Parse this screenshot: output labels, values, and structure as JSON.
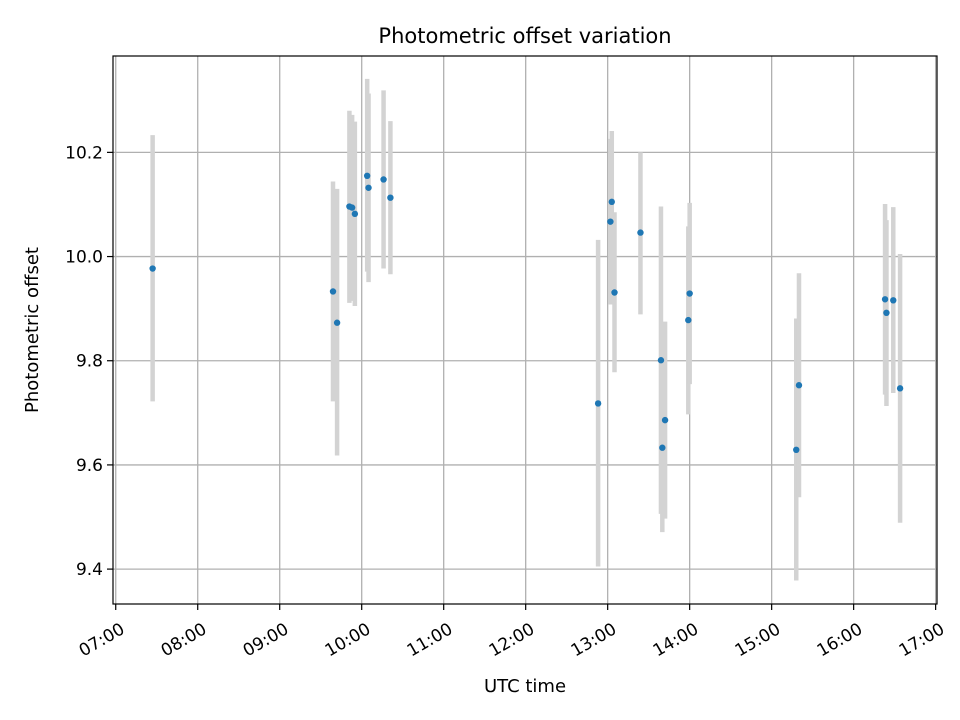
{
  "chart_data": {
    "type": "scatter",
    "title": "Photometric offset variation",
    "xlabel": "UTC time",
    "ylabel": "Photometric offset",
    "xlim": [
      "06:58",
      "17:01"
    ],
    "ylim": [
      9.333,
      10.385
    ],
    "x_ticks": [
      "07:00",
      "08:00",
      "09:00",
      "10:00",
      "11:00",
      "12:00",
      "13:00",
      "14:00",
      "15:00",
      "16:00",
      "17:00"
    ],
    "y_ticks": [
      9.4,
      9.6,
      9.8,
      10.0,
      10.2
    ],
    "y_tick_labels": [
      "9.4",
      "9.6",
      "9.8",
      "10.0",
      "10.2"
    ],
    "grid": true,
    "marker_color": "#1f77b4",
    "errorbar_color": "#d3d3d3",
    "points": [
      {
        "x": "07:27",
        "y": 9.977,
        "yerr": [
          9.722,
          10.233
        ]
      },
      {
        "x": "09:39",
        "y": 9.933,
        "yerr": [
          9.722,
          10.144
        ]
      },
      {
        "x": "09:42",
        "y": 9.873,
        "yerr": [
          9.618,
          10.13
        ]
      },
      {
        "x": "09:51",
        "y": 10.096,
        "yerr": [
          9.911,
          10.28
        ]
      },
      {
        "x": "09:53",
        "y": 10.094,
        "yerr": [
          9.915,
          10.272
        ]
      },
      {
        "x": "09:55",
        "y": 10.082,
        "yerr": [
          9.905,
          10.259
        ]
      },
      {
        "x": "10:04",
        "y": 10.155,
        "yerr": [
          9.971,
          10.341
        ]
      },
      {
        "x": "10:05",
        "y": 10.132,
        "yerr": [
          9.951,
          10.313
        ]
      },
      {
        "x": "10:16",
        "y": 10.148,
        "yerr": [
          9.977,
          10.319
        ]
      },
      {
        "x": "10:21",
        "y": 10.113,
        "yerr": [
          9.966,
          10.26
        ]
      },
      {
        "x": "12:53",
        "y": 9.718,
        "yerr": [
          9.405,
          10.032
        ]
      },
      {
        "x": "13:02",
        "y": 10.067,
        "yerr": [
          9.908,
          10.226
        ]
      },
      {
        "x": "13:03",
        "y": 10.105,
        "yerr": [
          9.969,
          10.241
        ]
      },
      {
        "x": "13:05",
        "y": 9.931,
        "yerr": [
          9.778,
          10.085
        ]
      },
      {
        "x": "13:24",
        "y": 10.046,
        "yerr": [
          9.889,
          10.2
        ]
      },
      {
        "x": "13:39",
        "y": 9.801,
        "yerr": [
          9.506,
          10.096
        ]
      },
      {
        "x": "13:40",
        "y": 9.633,
        "yerr": [
          9.471,
          9.796
        ]
      },
      {
        "x": "13:42",
        "y": 9.686,
        "yerr": [
          9.497,
          9.875
        ]
      },
      {
        "x": "13:59",
        "y": 9.878,
        "yerr": [
          9.697,
          10.058
        ]
      },
      {
        "x": "14:00",
        "y": 9.929,
        "yerr": [
          9.755,
          10.103
        ]
      },
      {
        "x": "15:18",
        "y": 9.629,
        "yerr": [
          9.378,
          9.881
        ]
      },
      {
        "x": "15:20",
        "y": 9.753,
        "yerr": [
          9.538,
          9.968
        ]
      },
      {
        "x": "16:23",
        "y": 9.918,
        "yerr": [
          9.735,
          10.101
        ]
      },
      {
        "x": "16:24",
        "y": 9.892,
        "yerr": [
          9.713,
          10.07
        ]
      },
      {
        "x": "16:29",
        "y": 9.916,
        "yerr": [
          9.738,
          10.095
        ]
      },
      {
        "x": "16:34",
        "y": 9.747,
        "yerr": [
          9.489,
          10.005
        ]
      }
    ]
  }
}
